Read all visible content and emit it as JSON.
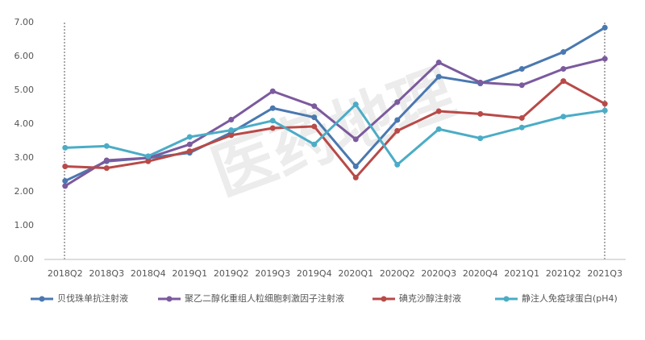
{
  "chart_data": {
    "type": "line",
    "watermark": "医药地理",
    "categories": [
      "2018Q2",
      "2018Q3",
      "2018Q4",
      "2019Q1",
      "2019Q2",
      "2019Q3",
      "2019Q4",
      "2020Q1",
      "2020Q2",
      "2020Q3",
      "2020Q4",
      "2021Q1",
      "2021Q2",
      "2021Q3"
    ],
    "series": [
      {
        "name": "贝伐珠单抗注射液",
        "color": "#4a78b0",
        "values": [
          2.32,
          2.9,
          3.0,
          3.15,
          3.75,
          4.47,
          4.2,
          2.75,
          4.12,
          5.4,
          5.2,
          5.63,
          6.13,
          6.85
        ]
      },
      {
        "name": "聚乙二醇化重组人粒细胞刺激因子注射液",
        "color": "#7b5a9e",
        "values": [
          2.17,
          2.93,
          3.0,
          3.4,
          4.13,
          4.97,
          4.53,
          3.55,
          4.65,
          5.82,
          5.23,
          5.15,
          5.63,
          5.93
        ]
      },
      {
        "name": "碘克沙醇注射液",
        "color": "#b84a48",
        "values": [
          2.75,
          2.7,
          2.9,
          3.2,
          3.67,
          3.88,
          3.93,
          2.42,
          3.8,
          4.38,
          4.3,
          4.18,
          5.27,
          4.6
        ]
      },
      {
        "name": "静注人免疫球蛋白(pH4)",
        "color": "#4bacc6",
        "values": [
          3.3,
          3.35,
          3.05,
          3.62,
          3.82,
          4.1,
          3.4,
          4.58,
          2.8,
          3.85,
          3.58,
          3.9,
          4.22,
          4.4
        ]
      }
    ],
    "ylim": [
      0,
      7
    ],
    "yticks": [
      {
        "value": 0,
        "label": "0.00"
      },
      {
        "value": 1,
        "label": "1.00"
      },
      {
        "value": 2,
        "label": "2.00"
      },
      {
        "value": 3,
        "label": "3.00"
      },
      {
        "value": 4,
        "label": "4.00"
      },
      {
        "value": 5,
        "label": "5.00"
      },
      {
        "value": 6,
        "label": "6.00"
      },
      {
        "value": 7,
        "label": "7.00"
      }
    ],
    "grid": false
  }
}
